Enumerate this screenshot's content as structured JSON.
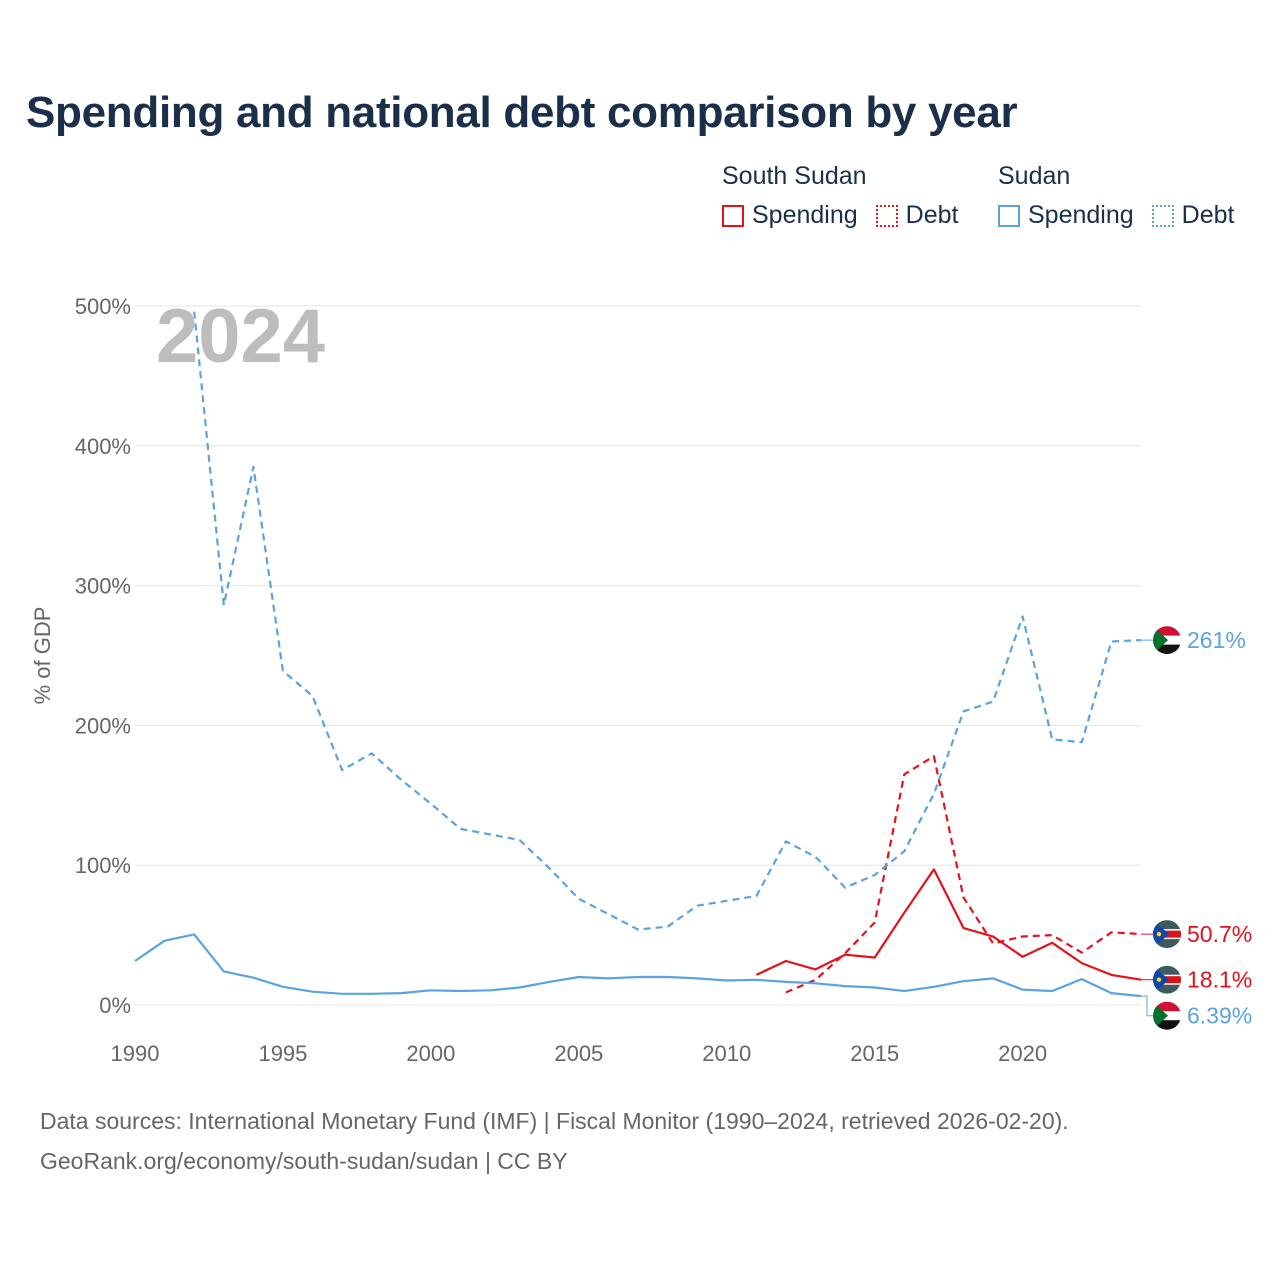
{
  "chart_data": {
    "type": "line",
    "title": "Spending and national debt comparison by year",
    "year_label": "2024",
    "xlabel": "",
    "ylabel": "% of GDP",
    "xlim": [
      1990,
      2024
    ],
    "ylim": [
      0,
      500
    ],
    "x_ticks": [
      1990,
      1995,
      2000,
      2005,
      2010,
      2015,
      2020
    ],
    "x_tick_labels": [
      "1990",
      "1995",
      "2000",
      "2005",
      "2010",
      "2015",
      "2020"
    ],
    "y_ticks": [
      0,
      100,
      200,
      300,
      400,
      500
    ],
    "y_tick_labels": [
      "0%",
      "100%",
      "200%",
      "300%",
      "400%",
      "500%"
    ],
    "grid": true,
    "legend": {
      "placement": "top-right",
      "groups": [
        {
          "country": "South Sudan",
          "items": [
            "Spending",
            "Debt"
          ]
        },
        {
          "country": "Sudan",
          "items": [
            "Spending",
            "Debt"
          ]
        }
      ]
    },
    "series": [
      {
        "name": "South Sudan Spending",
        "country": "South Sudan",
        "metric": "Spending",
        "color": "#e3121b",
        "dash": "solid",
        "x": [
          2011,
          2012,
          2013,
          2014,
          2015,
          2016,
          2017,
          2018,
          2019,
          2020,
          2021,
          2022,
          2023,
          2024
        ],
        "values": [
          21.5,
          31.5,
          25.5,
          36,
          34,
          66,
          97,
          55,
          49,
          34.5,
          44.5,
          30,
          21.5,
          18.1
        ],
        "end_label": "18.1%"
      },
      {
        "name": "South Sudan Debt",
        "country": "South Sudan",
        "metric": "Debt",
        "color": "#e3121b",
        "dash": "dashed",
        "x": [
          2012,
          2013,
          2014,
          2015,
          2016,
          2017,
          2018,
          2019,
          2020,
          2021,
          2022,
          2023,
          2024
        ],
        "values": [
          9,
          18,
          37,
          59,
          165,
          178,
          77,
          44,
          49,
          50,
          37.5,
          52,
          50.7
        ],
        "end_label": "50.7%"
      },
      {
        "name": "Sudan Spending",
        "country": "Sudan",
        "metric": "Spending",
        "color": "#5ba3e0",
        "dash": "solid",
        "x": [
          1990,
          1991,
          1992,
          1993,
          1994,
          1995,
          1996,
          1997,
          1998,
          1999,
          2000,
          2001,
          2002,
          2003,
          2004,
          2005,
          2006,
          2007,
          2008,
          2009,
          2010,
          2011,
          2012,
          2013,
          2014,
          2015,
          2016,
          2017,
          2018,
          2019,
          2020,
          2021,
          2022,
          2023,
          2024
        ],
        "values": [
          31.5,
          46,
          50.5,
          24,
          19.5,
          13,
          9.5,
          8,
          8,
          8.5,
          10.5,
          10,
          10.5,
          12.5,
          16.5,
          20,
          19,
          20,
          20,
          19,
          17.5,
          18,
          16.5,
          15.5,
          13.5,
          12.5,
          10,
          13,
          17,
          19,
          11,
          10,
          18.5,
          8.5,
          6.39
        ],
        "end_label": "6.39%"
      },
      {
        "name": "Sudan Debt",
        "country": "Sudan",
        "metric": "Debt",
        "color": "#5ba3e0",
        "dash": "dashed",
        "x": [
          1992,
          1993,
          1994,
          1995,
          1996,
          1997,
          1998,
          1999,
          2000,
          2001,
          2002,
          2003,
          2004,
          2005,
          2006,
          2007,
          2008,
          2009,
          2010,
          2011,
          2012,
          2013,
          2014,
          2015,
          2016,
          2017,
          2018,
          2019,
          2020,
          2021,
          2022,
          2023,
          2024
        ],
        "values": [
          496,
          286,
          385,
          239,
          221,
          168,
          180,
          161,
          144,
          126,
          122,
          118,
          98,
          76,
          65,
          54,
          56,
          71,
          74.5,
          78,
          117,
          106,
          84,
          93,
          110,
          151,
          210,
          217,
          278,
          190,
          188,
          260,
          261
        ],
        "end_label": "261%"
      }
    ]
  },
  "source": {
    "line1": "Data sources: International Monetary Fund (IMF) | Fiscal Monitor (1990–2024, retrieved 2026-02-20).",
    "line2": "GeoRank.org/economy/south-sudan/sudan | CC BY"
  }
}
